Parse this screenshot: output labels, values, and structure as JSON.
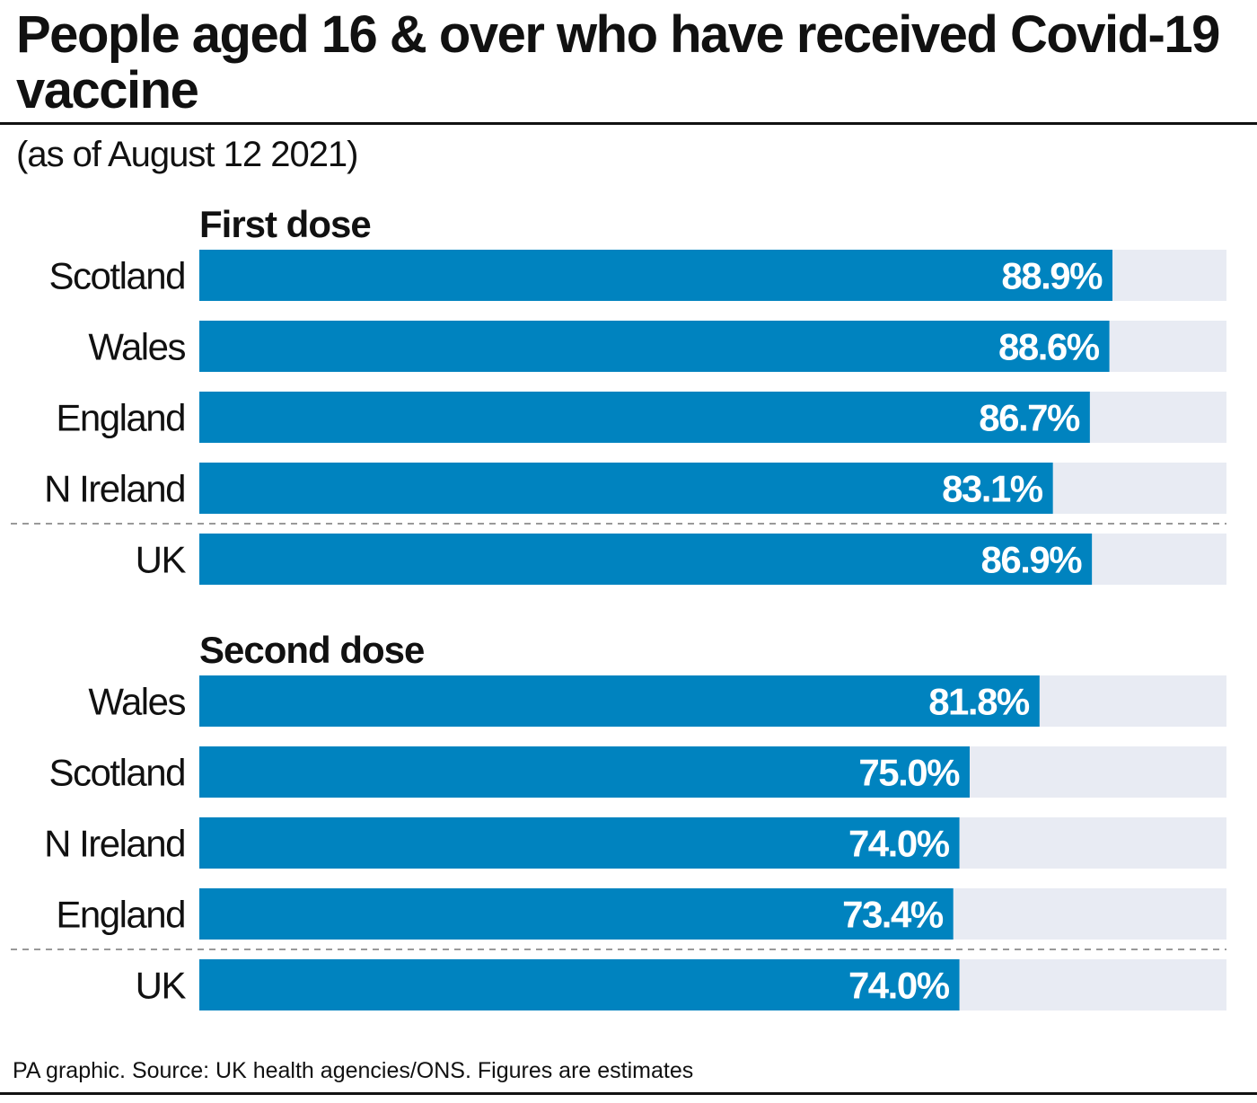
{
  "header": {
    "title": "People aged 16 & over who have received Covid-19 vaccine",
    "subtitle": "(as of August 12 2021)"
  },
  "footer": {
    "source": "PA graphic. Source: UK health agencies/ONS. Figures are estimates"
  },
  "colors": {
    "bar": "#0083bf",
    "track": "#e8ebf3",
    "text": "#111111",
    "value_label": "#ffffff",
    "divider": "#999999"
  },
  "chart_data": [
    {
      "type": "bar",
      "orientation": "horizontal",
      "title": "First dose",
      "categories": [
        "Scotland",
        "Wales",
        "England",
        "N Ireland",
        "UK"
      ],
      "values": [
        88.9,
        88.6,
        86.7,
        83.1,
        86.9
      ],
      "value_labels": [
        "88.9%",
        "88.6%",
        "86.7%",
        "83.1%",
        "86.9%"
      ],
      "unit": "%",
      "xlim": [
        0,
        100
      ],
      "separator_before": "UK"
    },
    {
      "type": "bar",
      "orientation": "horizontal",
      "title": "Second dose",
      "categories": [
        "Wales",
        "Scotland",
        "N Ireland",
        "England",
        "UK"
      ],
      "values": [
        81.8,
        75.0,
        74.0,
        73.4,
        74.0
      ],
      "value_labels": [
        "81.8%",
        "75.0%",
        "74.0%",
        "73.4%",
        "74.0%"
      ],
      "unit": "%",
      "xlim": [
        0,
        100
      ],
      "separator_before": "UK"
    }
  ]
}
